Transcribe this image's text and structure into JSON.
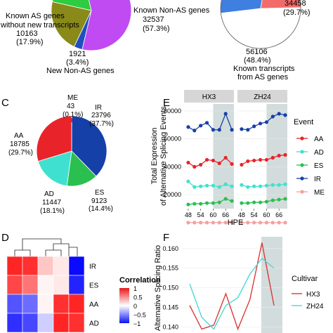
{
  "panels": {
    "C": "C",
    "D": "D",
    "E": "E",
    "F": "F"
  },
  "chart_data": [
    {
      "id": "A",
      "type": "pie",
      "slices": [
        {
          "label": "Known AS genes without new transcripts",
          "value": 10163,
          "percent": "(17.9%)",
          "color": "#2ecc40"
        },
        {
          "label": "Known Non-AS genes",
          "value": 32537,
          "percent": "(57.3%)",
          "color": "#c04bf2"
        },
        {
          "label": "New Non-AS genes",
          "value": 1921,
          "percent": "(3.4%)",
          "color": "#1f4fbf"
        },
        {
          "label": "",
          "value": 12179,
          "percent": "",
          "color": "#8a8a1a"
        }
      ],
      "labels": {
        "top_right": "Known Non-AS genes",
        "top_right_value": "32537",
        "top_right_pct": "(57.3%)",
        "left_l1": "Known AS genes",
        "left_l2": "without new transcripts",
        "left_value": "10163",
        "left_pct": "(17.9%)",
        "bottom_value": "1921",
        "bottom_pct": "(3.4%)",
        "bottom_label": "New Non-AS genes"
      }
    },
    {
      "id": "B",
      "type": "pie",
      "slices": [
        {
          "label": "Known transcripts from AS genes",
          "value": 56106,
          "percent": "(48.4%)",
          "color": "#ffffff"
        },
        {
          "label": "",
          "value": 34458,
          "percent": "(29.7%)",
          "color": "#3e7fe0"
        },
        {
          "label": "",
          "value": 25300,
          "percent": "",
          "color": "#f26b6b"
        }
      ],
      "labels": {
        "right_value": "34458",
        "right_pct": "(29.7%)",
        "bottom_value": "56106",
        "bottom_pct": "(48.4%)",
        "bottom_l1": "Known transcripts",
        "bottom_l2": "from AS genes"
      }
    },
    {
      "id": "C",
      "type": "pie",
      "slices": [
        {
          "label": "ME",
          "value": 43,
          "percent": "(0.1%)",
          "color": "#f5a0a0"
        },
        {
          "label": "IR",
          "value": 23796,
          "percent": "(37.7%)",
          "color": "#1540a8"
        },
        {
          "label": "ES",
          "value": 9123,
          "percent": "(14.4%)",
          "color": "#2bbf4f"
        },
        {
          "label": "AD",
          "value": 11447,
          "percent": "(18.1%)",
          "color": "#40e0d0"
        },
        {
          "label": "AA",
          "value": 18785,
          "percent": "(29.7%)",
          "color": "#e8242a"
        }
      ]
    },
    {
      "id": "E",
      "type": "line",
      "ylabel_l1": "Total Expression",
      "ylabel_l2": "of Alternative Splicing Events",
      "xlabel": "HPE",
      "facets": [
        "HX3",
        "ZH24"
      ],
      "x": [
        48,
        51,
        54,
        57,
        60,
        63,
        66,
        69
      ],
      "xticks": [
        "48",
        "54",
        "60",
        "66"
      ],
      "ylim": [
        10000,
        85000
      ],
      "yticks": [
        "20000",
        "40000",
        "60000",
        "80000"
      ],
      "shaded_from": 60,
      "legend_title": "Event",
      "series": [
        {
          "name": "AA",
          "color": "#e8242a",
          "HX3": [
            43000,
            40000,
            41500,
            45000,
            44500,
            42500,
            46500,
            42000
          ],
          "ZH24": [
            41500,
            44000,
            44500,
            45000,
            45000,
            46500,
            48000,
            48500
          ]
        },
        {
          "name": "AD",
          "color": "#40e0d0",
          "HX3": [
            29500,
            25500,
            26000,
            26500,
            26500,
            25500,
            27500,
            26000
          ],
          "ZH24": [
            27000,
            25500,
            26000,
            26000,
            26500,
            27000,
            27000,
            27500
          ]
        },
        {
          "name": "ES",
          "color": "#2bbf4f",
          "HX3": [
            13000,
            13500,
            13500,
            14000,
            14000,
            14500,
            17000,
            15500
          ],
          "ZH24": [
            14000,
            14000,
            14500,
            14500,
            15000,
            16000,
            16500,
            17000
          ]
        },
        {
          "name": "IR",
          "color": "#1540a8",
          "HX3": [
            68500,
            66000,
            69500,
            71500,
            66500,
            66500,
            78000,
            66500
          ],
          "ZH24": [
            67000,
            66500,
            69000,
            71000,
            72000,
            76000,
            78000,
            77000
          ]
        },
        {
          "name": "ME",
          "color": "#f5a0a0",
          "HX3": [
            0,
            0,
            0,
            0,
            0,
            0,
            0,
            0
          ],
          "ZH24": [
            0,
            0,
            0,
            0,
            0,
            0,
            0,
            0
          ]
        }
      ]
    },
    {
      "id": "D",
      "type": "heatmap",
      "rows": [
        "IR",
        "ES",
        "AA",
        "AD"
      ],
      "matrix": [
        [
          0.95,
          0.9,
          0.25,
          0.1,
          -1.0
        ],
        [
          0.8,
          0.6,
          0.05,
          0.1,
          -0.9
        ],
        [
          -0.7,
          -0.6,
          0.05,
          0.9,
          0.95
        ],
        [
          -0.85,
          -0.75,
          -0.2,
          0.95,
          0.9
        ]
      ],
      "legend_title": "Correlation",
      "legend_ticks": [
        "1",
        "0.5",
        "0",
        "−0.5",
        "−1"
      ]
    },
    {
      "id": "F",
      "type": "line",
      "ylabel": "Alternative Splicing Ratio",
      "yticks": [
        "0.160",
        "0.155",
        "0.150",
        "0.145",
        "0.140"
      ],
      "ylim": [
        0.1385,
        0.163
      ],
      "shaded": [
        6,
        8
      ],
      "legend_title": "Cultivar",
      "series": [
        {
          "name": "HX3",
          "color": "#d93a3a",
          "values": [
            0.1455,
            0.1395,
            0.1405,
            0.1485,
            0.1395,
            0.147,
            0.1615,
            0.1455
          ]
        },
        {
          "name": "ZH24",
          "color": "#4fd8d0",
          "values": [
            0.151,
            0.1425,
            0.1395,
            0.1455,
            0.1475,
            0.1535,
            0.1575,
            0.155
          ]
        }
      ]
    }
  ]
}
